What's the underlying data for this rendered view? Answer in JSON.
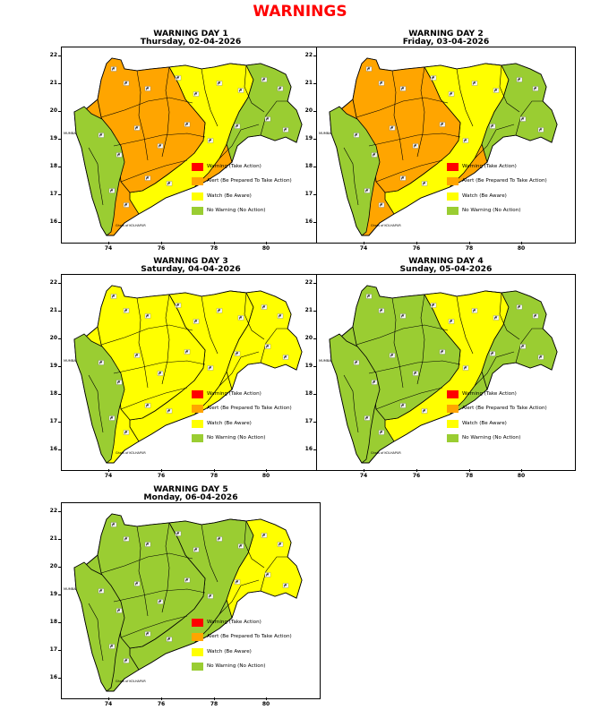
{
  "page_title": "WARNINGS",
  "legend": [
    {
      "key": "red",
      "label": "Warning (Take Action)",
      "color": "#ff0000"
    },
    {
      "key": "orange",
      "label": "Alert (Be Prepared To Take Action)",
      "color": "#ffa500"
    },
    {
      "key": "yellow",
      "label": "Watch (Be Aware)",
      "color": "#ffff00"
    },
    {
      "key": "green",
      "label": "No Warning (No Action)",
      "color": "#9acd32"
    }
  ],
  "axes": {
    "x_ticks": [
      "74",
      "76",
      "78",
      "80"
    ],
    "y_ticks": [
      "22",
      "21",
      "20",
      "19",
      "18",
      "17",
      "16"
    ]
  },
  "map_labels": {
    "mumbai": "MUMBAI",
    "kolhapur": "Ghats of KOLHAPUR"
  },
  "days": [
    {
      "title": "WARNING DAY 1",
      "date": "Thursday, 02-04-2026",
      "west": "green",
      "east": "green",
      "core": "orange",
      "band": "yellow"
    },
    {
      "title": "WARNING DAY 2",
      "date": "Friday, 03-04-2026",
      "west": "green",
      "east": "green",
      "core": "orange",
      "band": "yellow"
    },
    {
      "title": "WARNING DAY 3",
      "date": "Saturday, 04-04-2026",
      "west": "green",
      "east": "yellow",
      "core": "yellow",
      "band": "yellow"
    },
    {
      "title": "WARNING DAY 4",
      "date": "Sunday, 05-04-2026",
      "west": "green",
      "east": "green",
      "core": "green",
      "band": "yellow"
    },
    {
      "title": "WARNING DAY 5",
      "date": "Monday, 06-04-2026",
      "west": "green",
      "east": "yellow",
      "core": "green",
      "band": "green"
    }
  ]
}
